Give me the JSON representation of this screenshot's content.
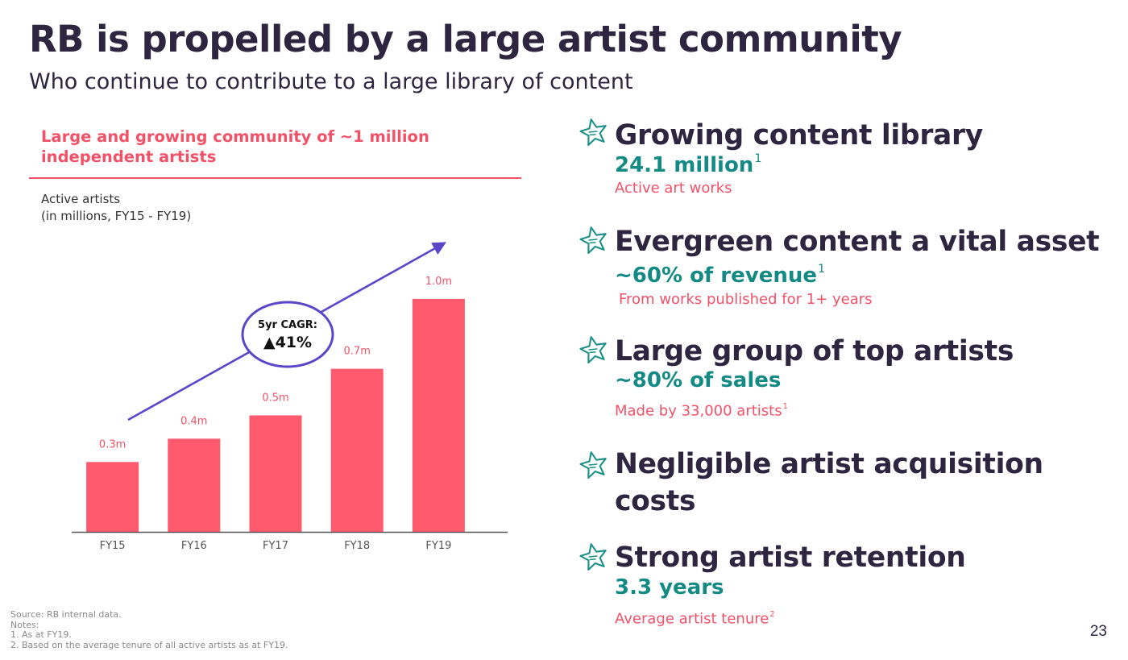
{
  "title": "RB is propelled by a large artist community",
  "subtitle": "Who continue to contribute to a large library of content",
  "panel": {
    "heading": "Large and growing community of ~1 million independent artists",
    "chart_label_line1": "Active artists",
    "chart_label_line2": "(in millions, FY15 - FY19)"
  },
  "chart_data": {
    "type": "bar",
    "categories": [
      "FY15",
      "FY16",
      "FY17",
      "FY18",
      "FY19"
    ],
    "values": [
      0.3,
      0.4,
      0.5,
      0.7,
      1.0
    ],
    "data_labels": [
      "0.3m",
      "0.4m",
      "0.5m",
      "0.7m",
      "1.0m"
    ],
    "title": "Active artists",
    "subtitle": "(in millions, FY15 - FY19)",
    "ylim": [
      0,
      1.1
    ],
    "grid": false,
    "bar_color": "#ff5a6e",
    "annotation": {
      "line1": "5yr CAGR:",
      "line2": "▲41%",
      "color": "#5b45c8"
    }
  },
  "highlights": [
    {
      "icon": "star-icon",
      "heading": "Growing content library",
      "stat": "24.1 million",
      "stat_note": "1",
      "desc": "Active art works",
      "desc_note": ""
    },
    {
      "icon": "star-icon",
      "heading": "Evergreen content a vital asset",
      "stat": "~60% of revenue",
      "stat_note": "1",
      "desc": "From works published for 1+ years",
      "desc_note": ""
    },
    {
      "icon": "star-icon",
      "heading": "Large group of top artists",
      "stat": "~80% of sales",
      "stat_note": "",
      "desc": "Made by 33,000 artists",
      "desc_note": "1"
    },
    {
      "icon": "star-icon",
      "heading": "Negligible artist acquisition costs",
      "stat": "",
      "stat_note": "",
      "desc": "",
      "desc_note": ""
    },
    {
      "icon": "star-icon",
      "heading": "Strong artist retention",
      "stat": "3.3 years",
      "stat_note": "",
      "desc": "Average artist tenure",
      "desc_note": "2"
    }
  ],
  "notes": {
    "source": "Source: RB internal data.",
    "label": "Notes:",
    "note1": "1. As at FY19.",
    "note2": "2. Based on the average tenure of all active artists as at FY19."
  },
  "page_number": "23",
  "colors": {
    "heading": "#2e2540",
    "accent_pink": "#f25268",
    "accent_teal": "#138a84",
    "arrow_purple": "#5b45c8"
  }
}
